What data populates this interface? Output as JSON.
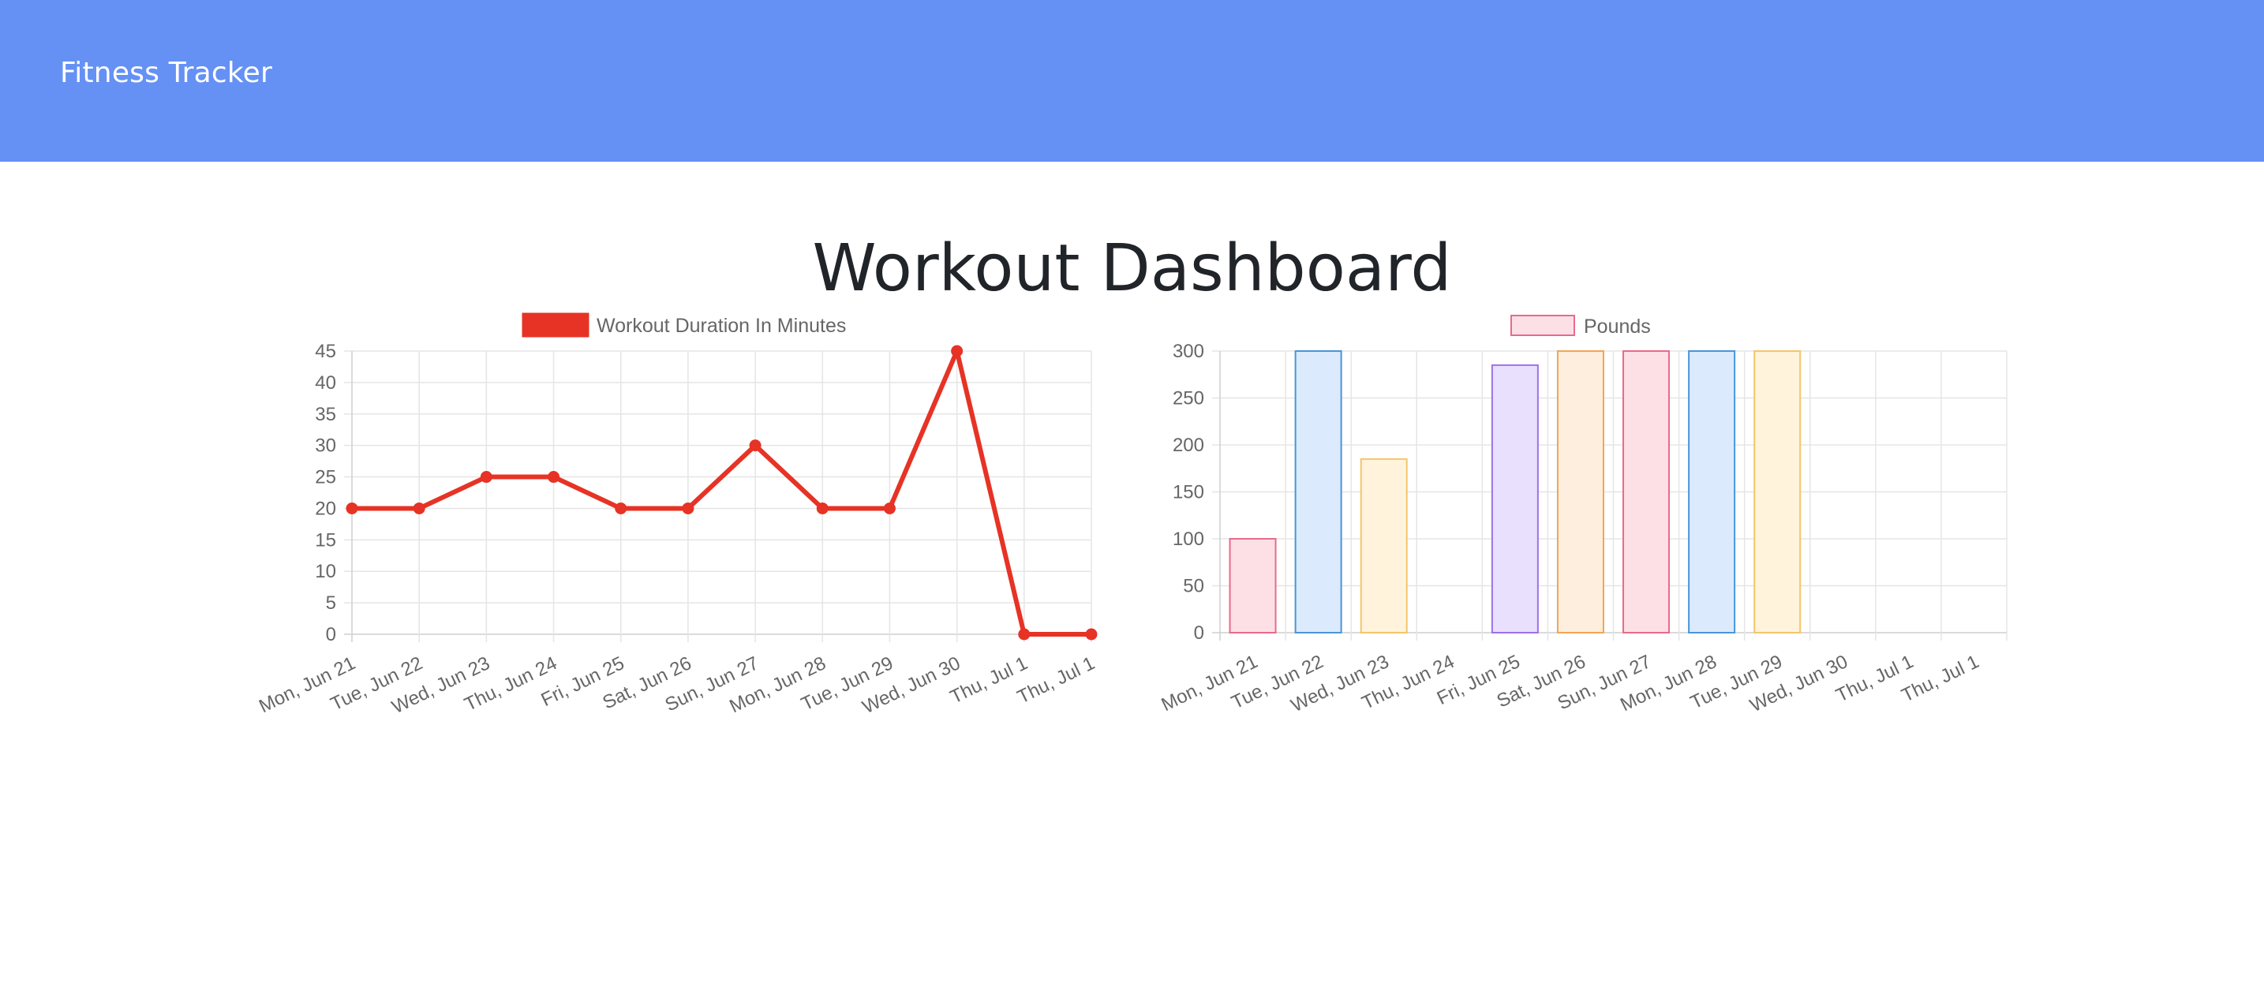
{
  "navbar": {
    "brand": "Fitness Tracker"
  },
  "page": {
    "title": "Workout Dashboard"
  },
  "colors": {
    "navbar": "#6591f4",
    "line": "#e63325",
    "grid": "#e5e5e5",
    "tick_text": "#666666"
  },
  "chart_data": [
    {
      "type": "line",
      "categories": [
        "Mon, Jun 21",
        "Tue, Jun 22",
        "Wed, Jun 23",
        "Thu, Jun 24",
        "Fri, Jun 25",
        "Sat, Jun 26",
        "Sun, Jun 27",
        "Mon, Jun 28",
        "Tue, Jun 29",
        "Wed, Jun 30",
        "Thu, Jul 1",
        "Thu, Jul 1"
      ],
      "series": [
        {
          "name": "Workout Duration In Minutes",
          "values": [
            20,
            20,
            25,
            25,
            20,
            20,
            30,
            20,
            20,
            45,
            0,
            0
          ],
          "color": "#e63325"
        }
      ],
      "ylim": [
        0,
        45
      ],
      "yticks": [
        0,
        5,
        10,
        15,
        20,
        25,
        30,
        35,
        40,
        45
      ],
      "grid": true,
      "legend": "top"
    },
    {
      "type": "bar",
      "categories": [
        "Mon, Jun 21",
        "Tue, Jun 22",
        "Wed, Jun 23",
        "Thu, Jun 24",
        "Fri, Jun 25",
        "Sat, Jun 26",
        "Sun, Jun 27",
        "Mon, Jun 28",
        "Tue, Jun 29",
        "Wed, Jun 30",
        "Thu, Jul 1",
        "Thu, Jul 1"
      ],
      "series": [
        {
          "name": "Pounds",
          "values": [
            100,
            300,
            185,
            0,
            285,
            300,
            300,
            300,
            300,
            0,
            0,
            0
          ]
        }
      ],
      "bar_colors": [
        {
          "fill": "#fde0e6",
          "stroke": "#e86a8a"
        },
        {
          "fill": "#dbeafc",
          "stroke": "#4a95d8"
        },
        {
          "fill": "#fff3dc",
          "stroke": "#f3c56c"
        },
        {
          "fill": "#dcf0f0",
          "stroke": "#59b9b9"
        },
        {
          "fill": "#e9e0fd",
          "stroke": "#9d72e8"
        },
        {
          "fill": "#feeedd",
          "stroke": "#f2a556"
        },
        {
          "fill": "#fde0e6",
          "stroke": "#e86a8a"
        },
        {
          "fill": "#dbeafc",
          "stroke": "#4a95d8"
        },
        {
          "fill": "#fff3dc",
          "stroke": "#f3c56c"
        },
        {
          "fill": "#dcf0f0",
          "stroke": "#59b9b9"
        },
        {
          "fill": "#e9e0fd",
          "stroke": "#9d72e8"
        },
        {
          "fill": "#feeedd",
          "stroke": "#f2a556"
        }
      ],
      "legend_swatch": {
        "fill": "#fde0e6",
        "stroke": "#e86a8a"
      },
      "ylim": [
        0,
        300
      ],
      "yticks": [
        0,
        50,
        100,
        150,
        200,
        250,
        300
      ],
      "grid": true,
      "legend": "top"
    }
  ]
}
